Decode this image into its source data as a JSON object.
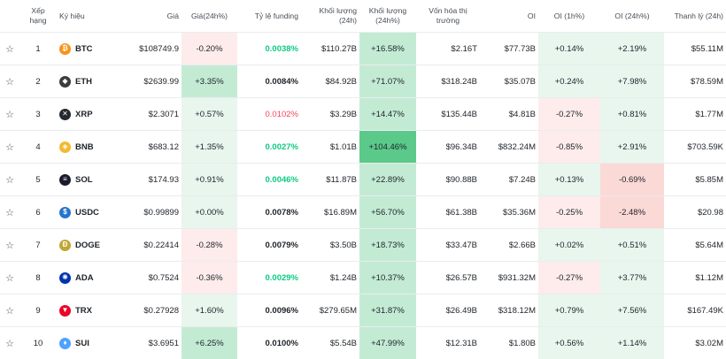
{
  "header": {
    "rank": "Xếp hạng",
    "symbol": "Ký hiệu",
    "price": "Giá",
    "price_change": "Giá(24h%)",
    "funding": "Tỷ lệ funding",
    "volume": "Khối lượng (24h)",
    "volume_change": "Khối lượng (24h%)",
    "market_cap": "Vốn hóa thị trường",
    "oi": "OI",
    "oi_1h": "OI (1h%)",
    "oi_24h": "OI (24h%)",
    "liquidation": "Thanh lý (24h)"
  },
  "star_glyph": "☆",
  "rows": [
    {
      "rank": "1",
      "symbol": "BTC",
      "icon": "bitcoin-icon",
      "icon_color": "#f7931a",
      "icon_glyph": "₿",
      "price": "$108749.9",
      "price_change": "-0.20%",
      "funding": "0.0038%",
      "funding_style": "green",
      "volume": "$110.27B",
      "volume_change": "+16.58%",
      "market_cap": "$2.16T",
      "oi": "$77.73B",
      "oi_1h": "+0.14%",
      "oi_24h": "+2.19%",
      "liquidation": "$55.11M"
    },
    {
      "rank": "2",
      "symbol": "ETH",
      "icon": "ethereum-icon",
      "icon_color": "#3c3c3d",
      "icon_glyph": "◆",
      "price": "$2639.99",
      "price_change": "+3.35%",
      "funding": "0.0084%",
      "funding_style": "neutral",
      "volume": "$84.92B",
      "volume_change": "+71.07%",
      "market_cap": "$318.24B",
      "oi": "$35.07B",
      "oi_1h": "+0.24%",
      "oi_24h": "+7.98%",
      "liquidation": "$78.59M"
    },
    {
      "rank": "3",
      "symbol": "XRP",
      "icon": "xrp-icon",
      "icon_color": "#23292f",
      "icon_glyph": "✕",
      "price": "$2.3071",
      "price_change": "+0.57%",
      "funding": "0.0102%",
      "funding_style": "red",
      "volume": "$3.29B",
      "volume_change": "+14.47%",
      "market_cap": "$135.44B",
      "oi": "$4.81B",
      "oi_1h": "-0.27%",
      "oi_24h": "+0.81%",
      "liquidation": "$1.77M"
    },
    {
      "rank": "4",
      "symbol": "BNB",
      "icon": "bnb-icon",
      "icon_color": "#f3ba2f",
      "icon_glyph": "◈",
      "price": "$683.12",
      "price_change": "+1.35%",
      "funding": "0.0027%",
      "funding_style": "green",
      "volume": "$1.01B",
      "volume_change": "+104.46%",
      "market_cap": "$96.34B",
      "oi": "$832.24M",
      "oi_1h": "-0.85%",
      "oi_24h": "+2.91%",
      "liquidation": "$703.59K"
    },
    {
      "rank": "5",
      "symbol": "SOL",
      "icon": "solana-icon",
      "icon_color": "#1b1b2f",
      "icon_glyph": "≡",
      "price": "$174.93",
      "price_change": "+0.91%",
      "funding": "0.0046%",
      "funding_style": "green",
      "volume": "$11.87B",
      "volume_change": "+22.89%",
      "market_cap": "$90.88B",
      "oi": "$7.24B",
      "oi_1h": "+0.13%",
      "oi_24h": "-0.69%",
      "liquidation": "$5.85M"
    },
    {
      "rank": "6",
      "symbol": "USDC",
      "icon": "usdc-icon",
      "icon_color": "#2775ca",
      "icon_glyph": "$",
      "price": "$0.99899",
      "price_change": "+0.00%",
      "funding": "0.0078%",
      "funding_style": "neutral",
      "volume": "$16.89M",
      "volume_change": "+56.70%",
      "market_cap": "$61.38B",
      "oi": "$35.36M",
      "oi_1h": "-0.25%",
      "oi_24h": "-2.48%",
      "liquidation": "$20.98"
    },
    {
      "rank": "7",
      "symbol": "DOGE",
      "icon": "dogecoin-icon",
      "icon_color": "#c2a633",
      "icon_glyph": "Ð",
      "price": "$0.22414",
      "price_change": "-0.28%",
      "funding": "0.0079%",
      "funding_style": "neutral",
      "volume": "$3.50B",
      "volume_change": "+18.73%",
      "market_cap": "$33.47B",
      "oi": "$2.66B",
      "oi_1h": "+0.02%",
      "oi_24h": "+0.51%",
      "liquidation": "$5.64M"
    },
    {
      "rank": "8",
      "symbol": "ADA",
      "icon": "cardano-icon",
      "icon_color": "#0033ad",
      "icon_glyph": "✺",
      "price": "$0.7524",
      "price_change": "-0.36%",
      "funding": "0.0029%",
      "funding_style": "green",
      "volume": "$1.24B",
      "volume_change": "+10.37%",
      "market_cap": "$26.57B",
      "oi": "$931.32M",
      "oi_1h": "-0.27%",
      "oi_24h": "+3.77%",
      "liquidation": "$1.12M"
    },
    {
      "rank": "9",
      "symbol": "TRX",
      "icon": "tron-icon",
      "icon_color": "#ef0027",
      "icon_glyph": "▼",
      "price": "$0.27928",
      "price_change": "+1.60%",
      "funding": "0.0096%",
      "funding_style": "neutral",
      "volume": "$279.65M",
      "volume_change": "+31.87%",
      "market_cap": "$26.49B",
      "oi": "$318.12M",
      "oi_1h": "+0.79%",
      "oi_24h": "+7.56%",
      "liquidation": "$167.49K"
    },
    {
      "rank": "10",
      "symbol": "SUI",
      "icon": "sui-icon",
      "icon_color": "#4da2ff",
      "icon_glyph": "♦",
      "price": "$3.6951",
      "price_change": "+6.25%",
      "funding": "0.0100%",
      "funding_style": "neutral",
      "volume": "$5.54B",
      "volume_change": "+47.99%",
      "market_cap": "$12.31B",
      "oi": "$1.80B",
      "oi_1h": "+0.56%",
      "oi_24h": "+1.14%",
      "liquidation": "$3.02M"
    }
  ]
}
